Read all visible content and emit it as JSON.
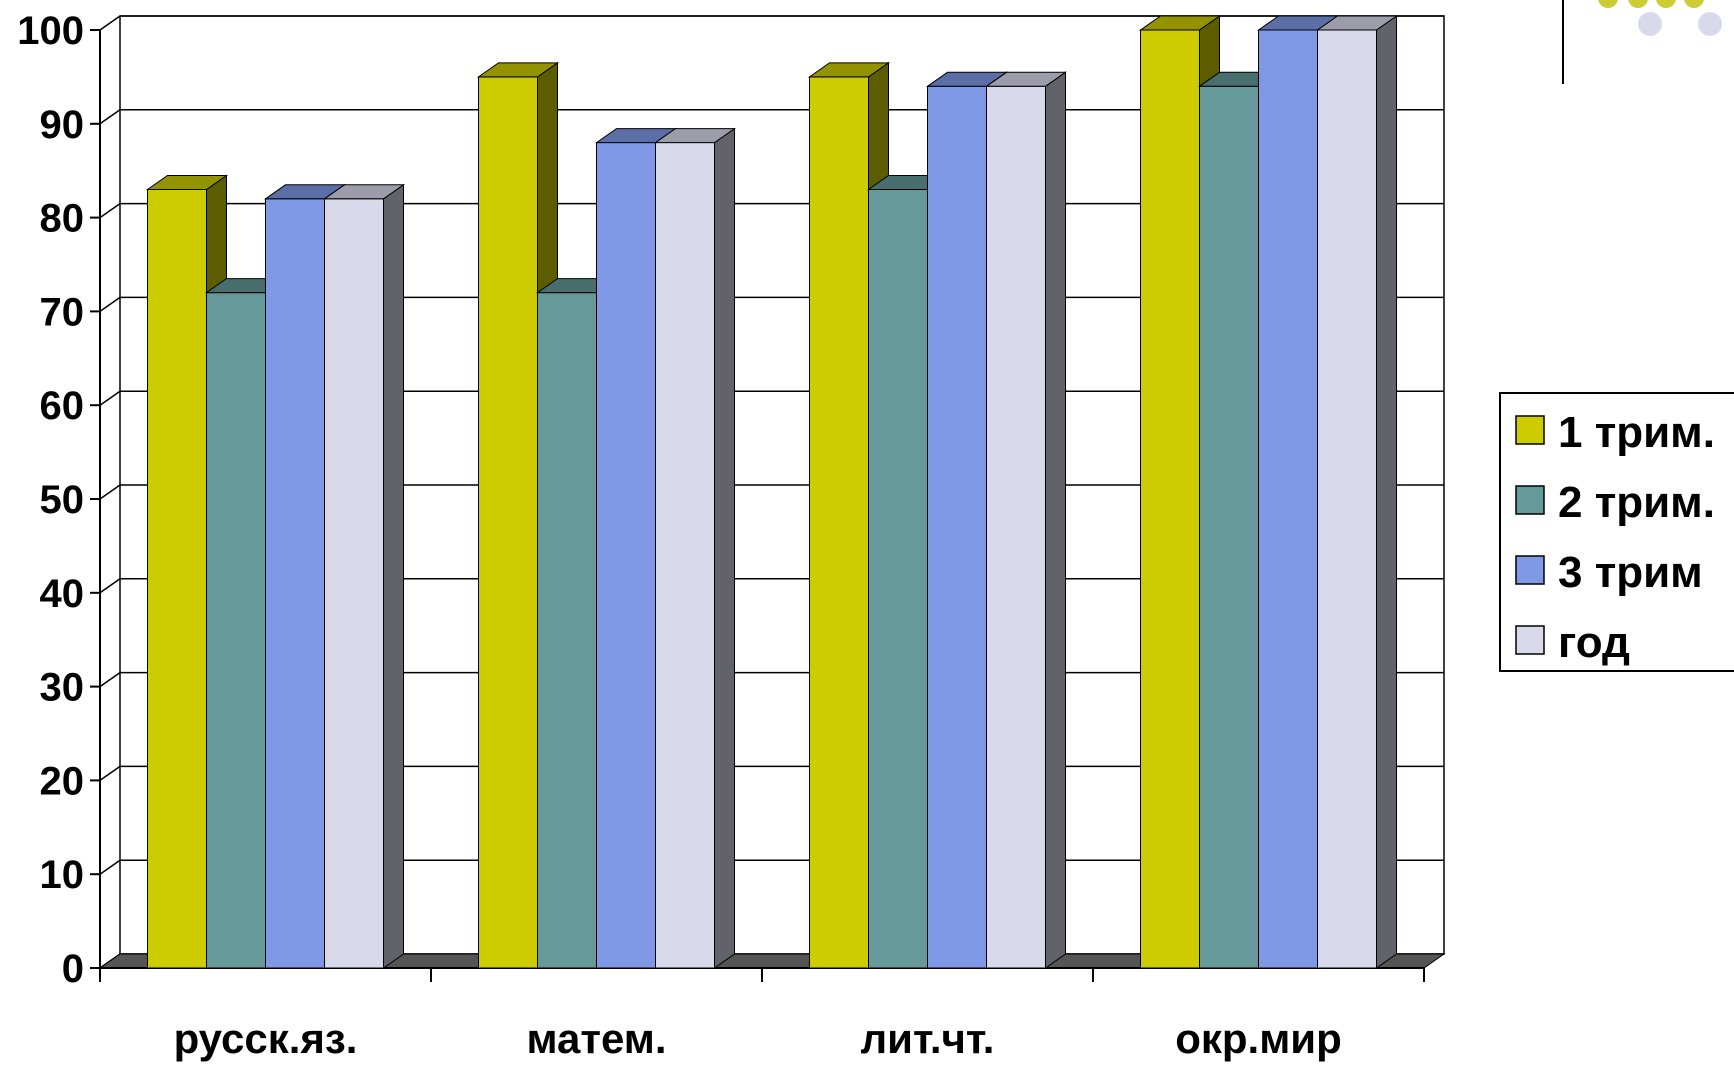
{
  "chart_data": {
    "type": "bar",
    "title": "",
    "xlabel": "",
    "ylabel": "",
    "ylim": [
      0,
      100
    ],
    "y_ticks": [
      "0",
      "10",
      "20",
      "30",
      "40",
      "50",
      "60",
      "70",
      "80",
      "90",
      "100"
    ],
    "grid": true,
    "legend_position": "right",
    "style": "3d-clustered-column",
    "categories": [
      "русск.яз.",
      "матем.",
      "лит.чт.",
      "окр.мир"
    ],
    "series": [
      {
        "name": "1 трим.",
        "color": "#CCCC00",
        "values": [
          83,
          95,
          95,
          100
        ]
      },
      {
        "name": "2 трим.",
        "color": "#669999",
        "values": [
          72,
          72,
          83,
          94
        ]
      },
      {
        "name": "3 трим",
        "color": "#8099E6",
        "values": [
          82,
          88,
          94,
          100
        ]
      },
      {
        "name": "год",
        "color": "#D9D9EC",
        "values": [
          82,
          88,
          94,
          100
        ]
      }
    ]
  },
  "decoration": {
    "dot_colors": [
      "#CCCC33",
      "#D9D9EC"
    ]
  }
}
